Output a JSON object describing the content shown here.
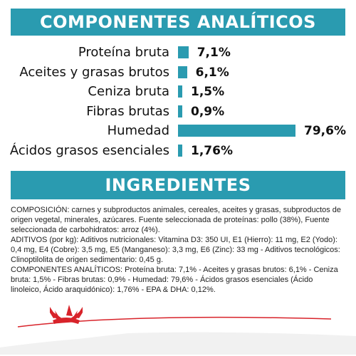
{
  "analytics": {
    "heading": "COMPONENTES ANALÍTICOS",
    "items": [
      {
        "label": "Proteína bruta",
        "value_text": "7,1%",
        "value": 7.1
      },
      {
        "label": "Aceites y grasas brutos",
        "value_text": "6,1%",
        "value": 6.1
      },
      {
        "label": "Ceniza bruta",
        "value_text": "1,5%",
        "value": 1.5
      },
      {
        "label": "Fibras brutas",
        "value_text": "0,9%",
        "value": 0.9
      },
      {
        "label": "Humedad",
        "value_text": "79,6%",
        "value": 79.6
      },
      {
        "label": "Ácidos grasos esenciales",
        "value_text": "1,76%",
        "value": 1.76
      }
    ],
    "bar_color": "#2a9bb0"
  },
  "ingredients": {
    "heading": "INGREDIENTES",
    "paragraphs": [
      "COMPOSICIÓN: carnes y subproductos animales, cereales, aceites y grasas, subproductos de origen vegetal, minerales, azúcares. Fuente seleccionada de proteínas: pollo (38%), Fuente seleccionada de carbohidratos: arroz (4%).",
      "ADITIVOS (por kg): Aditivos nutricionales: Vitamina D3: 350 UI, E1 (Hierro): 11 mg, E2 (Yodo): 0,4 mg, E4 (Cobre): 3,5 mg, E5 (Manganeso): 3,3 mg, E6 (Zinc): 33 mg - Aditivos tecnológicos: Clinoptilolita de origen sedimentario: 0,45 g.",
      "COMPONENTES ANALÍTICOS: Proteína bruta: 7,1% - Aceites y grasas brutos: 6,1% - Ceniza bruta: 1,5% - Fibras brutas: 0,9% - Humedad: 79,6% - Ácidos grasos esenciales (Ácido linoleico, Ácido araquidónico): 1,76% - EPA & DHA: 0,12%."
    ]
  },
  "colors": {
    "accent": "#2a9bb0",
    "brand_red": "#d8232a"
  },
  "footer": {
    "logo": "royal-canin-crown-logo"
  }
}
